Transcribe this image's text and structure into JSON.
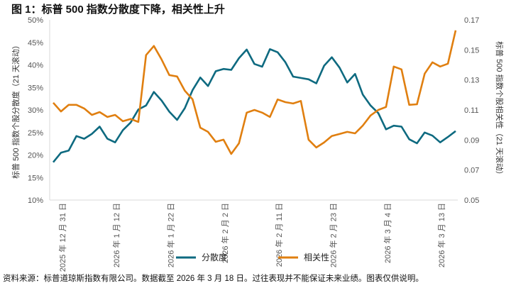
{
  "title": "图 1：标普 500 指数分散度下降，相关性上升",
  "footnote": "资料来源：标普道琼斯指数有限公司。数据截至 2026 年 3 月 18 日。过往表现并不能保证未来业绩。图表仅供说明。",
  "chart_data": {
    "type": "line",
    "title": "图 1：标普 500 指数分散度下降，相关性上升",
    "ylabel": "标普 500 指数个股分散度（21 天滚动）",
    "y2label": "标普 500 指数个股相关性（21 天滚动）",
    "ylim": [
      0.1,
      0.5
    ],
    "y2lim": [
      0.05,
      0.17
    ],
    "yticks": [
      "10%",
      "15%",
      "20%",
      "25%",
      "30%",
      "35%",
      "40%",
      "45%",
      "50%"
    ],
    "y2ticks": [
      "0.05",
      "0.07",
      "0.09",
      "0.11",
      "0.13",
      "0.15",
      "0.17"
    ],
    "xticks": [
      {
        "index": 1,
        "label": "2025 年 12 月 31 日"
      },
      {
        "index": 8,
        "label": "2026 年 1 月 12 日"
      },
      {
        "index": 15,
        "label": "2026 年 1 月 22 日"
      },
      {
        "index": 22,
        "label": "2026 年 2 月 2 日"
      },
      {
        "index": 29,
        "label": "2026 年 2 月 11 日"
      },
      {
        "index": 36,
        "label": "2026 年 2 月 23 日"
      },
      {
        "index": 43,
        "label": "2026 年 3 月 4 日"
      },
      {
        "index": 50,
        "label": "2026 年 3 月 13 日"
      }
    ],
    "grid": false,
    "legend_position": "bottom",
    "series": [
      {
        "name": "分散度",
        "axis": "left",
        "color": "#0e6a80",
        "values": [
          0.184,
          0.205,
          0.21,
          0.242,
          0.236,
          0.247,
          0.263,
          0.236,
          0.228,
          0.255,
          0.272,
          0.301,
          0.31,
          0.34,
          0.321,
          0.296,
          0.278,
          0.304,
          0.344,
          0.372,
          0.353,
          0.386,
          0.391,
          0.389,
          0.415,
          0.434,
          0.402,
          0.396,
          0.435,
          0.428,
          0.406,
          0.374,
          0.371,
          0.368,
          0.359,
          0.398,
          0.417,
          0.394,
          0.361,
          0.38,
          0.334,
          0.31,
          0.293,
          0.257,
          0.265,
          0.263,
          0.235,
          0.226,
          0.25,
          0.243,
          0.228,
          0.24,
          0.253
        ]
      },
      {
        "name": "相关性",
        "axis": "right",
        "color": "#e07f10",
        "values": [
          0.1148,
          0.109,
          0.1134,
          0.1134,
          0.111,
          0.1067,
          0.1086,
          0.1053,
          0.1067,
          0.1025,
          0.104,
          0.102,
          0.1465,
          0.1526,
          0.1436,
          0.1332,
          0.1323,
          0.1228,
          0.1171,
          0.0982,
          0.0954,
          0.0888,
          0.0902,
          0.0807,
          0.0878,
          0.1082,
          0.11,
          0.1082,
          0.1053,
          0.117,
          0.1152,
          0.1143,
          0.116,
          0.0902,
          0.085,
          0.0883,
          0.0926,
          0.094,
          0.0954,
          0.0944,
          0.0996,
          0.1063,
          0.11,
          0.112,
          0.1389,
          0.137,
          0.1134,
          0.1138,
          0.1342,
          0.1417,
          0.1389,
          0.1408,
          0.163
        ]
      }
    ]
  }
}
